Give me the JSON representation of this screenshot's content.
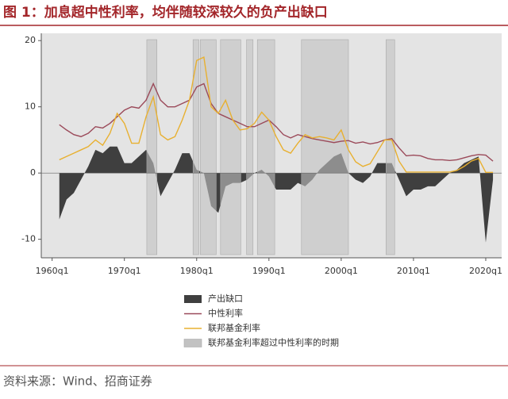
{
  "header": {
    "title": "图 1：加息超中性利率，均伴随较深较久的负产出缺口"
  },
  "footer": {
    "source": "资料来源：Wind、招商证券"
  },
  "chart_data": {
    "type": "line",
    "x": [
      1961,
      1962,
      1963,
      1964,
      1965,
      1966,
      1967,
      1968,
      1969,
      1970,
      1971,
      1972,
      1973,
      1974,
      1975,
      1976,
      1977,
      1978,
      1979,
      1980,
      1981,
      1982,
      1983,
      1984,
      1985,
      1986,
      1987,
      1988,
      1989,
      1990,
      1991,
      1992,
      1993,
      1994,
      1995,
      1996,
      1997,
      1998,
      1999,
      2000,
      2001,
      2002,
      2003,
      2004,
      2005,
      2006,
      2007,
      2008,
      2009,
      2010,
      2011,
      2012,
      2013,
      2014,
      2015,
      2016,
      2017,
      2018,
      2019,
      2020,
      2021
    ],
    "series": [
      {
        "name": "产出缺口",
        "color": "#3f3f3f",
        "style": "area",
        "values": [
          -7,
          -4,
          -3,
          -1,
          1,
          3.5,
          3,
          4,
          4,
          1.5,
          1.5,
          2.5,
          3.5,
          1.5,
          -3.5,
          -1.5,
          0.5,
          3,
          3,
          0.5,
          0,
          -5,
          -6,
          -2,
          -1.5,
          -1.5,
          -1,
          0,
          0.5,
          -0.5,
          -2.5,
          -2.5,
          -2.5,
          -1.5,
          -2,
          -1,
          0.5,
          1.5,
          2.5,
          3,
          0,
          -1,
          -1.5,
          -0.5,
          1.5,
          1.5,
          1.5,
          -1,
          -3.5,
          -2.5,
          -2.5,
          -2,
          -2,
          -1,
          0,
          0.5,
          1.5,
          2,
          2.5,
          -10.5,
          -1
        ]
      },
      {
        "name": "中性利率",
        "color": "#9b4a5a",
        "style": "line",
        "values": [
          7.3,
          6.5,
          5.8,
          5.5,
          6,
          7,
          6.8,
          7.5,
          8.5,
          9.5,
          10,
          9.8,
          11,
          13.5,
          11,
          10,
          10,
          10.5,
          11,
          13,
          13.5,
          10.5,
          9,
          8.5,
          8,
          7.5,
          7,
          7,
          7.5,
          8,
          7,
          5.8,
          5.3,
          5.8,
          5.5,
          5.2,
          5,
          4.8,
          4.6,
          4.8,
          4.9,
          4.5,
          4.7,
          4.4,
          4.6,
          5,
          5.2,
          3.8,
          2.6,
          2.7,
          2.6,
          2.2,
          2,
          2,
          1.9,
          2,
          2.3,
          2.6,
          2.8,
          2.7,
          1.8
        ]
      },
      {
        "name": "联邦基金利率",
        "color": "#e8b030",
        "style": "line",
        "values": [
          2,
          2.5,
          3,
          3.5,
          4,
          5,
          4.2,
          6,
          9,
          7.5,
          4.5,
          4.5,
          8.5,
          11.5,
          5.8,
          5,
          5.5,
          8,
          11,
          17,
          17.5,
          10,
          9,
          11,
          8,
          6.5,
          6.7,
          7.5,
          9.2,
          8,
          5.5,
          3.5,
          3,
          4.5,
          5.8,
          5.3,
          5.5,
          5.3,
          5,
          6.5,
          3.5,
          1.7,
          1,
          1.4,
          3.2,
          5,
          5,
          1.8,
          0.15,
          0.15,
          0.15,
          0.15,
          0.15,
          0.15,
          0.15,
          0.4,
          1,
          1.8,
          2.2,
          0.1,
          0.1
        ]
      }
    ],
    "shaded_periods": {
      "name": "联邦基金利率超过中性利率的时期",
      "color": "#c2c2c2",
      "ranges": [
        [
          1973.1,
          1974.5
        ],
        [
          1979.5,
          1980.3
        ],
        [
          1980.5,
          1982.7
        ],
        [
          1983.3,
          1986.1
        ],
        [
          1986.9,
          1987.8
        ],
        [
          1988.4,
          1990.8
        ],
        [
          1994.5,
          2001
        ],
        [
          2006.2,
          2007.4
        ]
      ]
    },
    "xlim": [
      1958.5,
      2022.2
    ],
    "xticks": [
      {
        "value": 1960,
        "label": "1960q1"
      },
      {
        "value": 1970,
        "label": "1970q1"
      },
      {
        "value": 1980,
        "label": "1980q1"
      },
      {
        "value": 1990,
        "label": "1990q1"
      },
      {
        "value": 2000,
        "label": "2000q1"
      },
      {
        "value": 2010,
        "label": "2010q1"
      },
      {
        "value": 2020,
        "label": "2020q1"
      }
    ],
    "ylim": [
      -12.8,
      21.1
    ],
    "yticks": [
      -10,
      0,
      10,
      20
    ]
  }
}
